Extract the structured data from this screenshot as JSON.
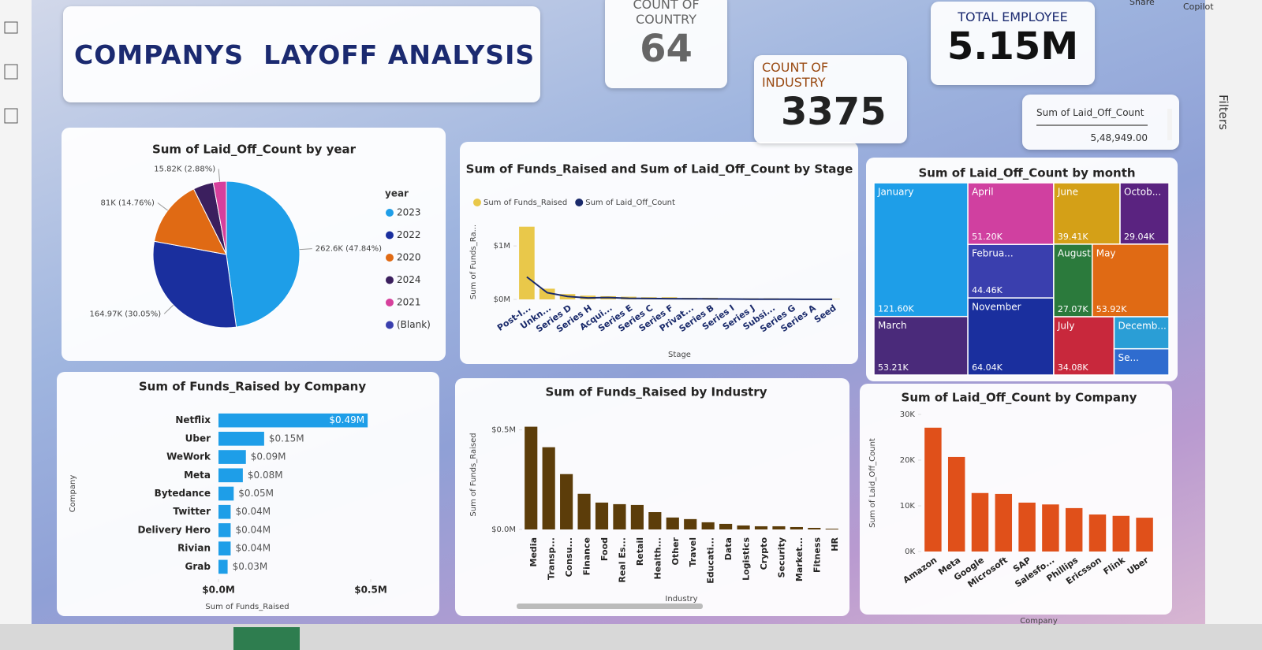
{
  "app": {
    "share": "Share",
    "copilot": "Copilot",
    "filters": "Filters"
  },
  "header": {
    "title": "COMPANYS  LAYOFF ANALYSIS"
  },
  "cards": [
    {
      "label": "COUNT OF COUNTRY",
      "value": 64
    },
    {
      "label": "COUNT OF INDUSTRY",
      "value": 3375
    },
    {
      "label": "TOTAL EMPLOYEE",
      "value": "5.15M"
    }
  ],
  "slicer": {
    "label": "Sum of Laid_Off_Count",
    "value": "5,48,949.00"
  },
  "chart_data": [
    {
      "type": "pie",
      "title": "Sum of Laid_Off_Count by year",
      "legend_title": "year",
      "categories": [
        "2023",
        "2022",
        "2020",
        "2024",
        "2021",
        "(Blank)"
      ],
      "values": [
        262600,
        164970,
        81000,
        24560,
        15820,
        0
      ],
      "value_labels": [
        "262.6K (47.84%)",
        "164.97K (30.05%)",
        "81K (14.76%)",
        null,
        "15.82K (2.88%)",
        null
      ],
      "colors": [
        "#1e9ee8",
        "#1a2f9e",
        "#e06a14",
        "#3b1f5e",
        "#d6409c",
        "#3a3fae"
      ]
    },
    {
      "type": "combo",
      "title": "Sum of Funds_Raised and Sum of Laid_Off_Count by Stage",
      "x_label": "Stage",
      "y_label": "Sum of Funds_Ra...",
      "categories": [
        "Post-I...",
        "Unkn...",
        "Series D",
        "Series H",
        "Acqui...",
        "Series E",
        "Series C",
        "Series F",
        "Privat...",
        "Series B",
        "Series I",
        "Series J",
        "Subsi...",
        "Series G",
        "Series A",
        "Seed"
      ],
      "series": [
        {
          "name": "Sum of Funds_Raised",
          "type": "bar",
          "color": "#e9c84a",
          "values": [
            1360000,
            200000,
            100000,
            70000,
            60000,
            50000,
            40000,
            40000,
            30000,
            30000,
            20000,
            20000,
            20000,
            10000,
            10000,
            5000
          ]
        },
        {
          "name": "Sum of Laid_Off_Count",
          "type": "line",
          "axis": "y2",
          "color": "#1a2a6b",
          "values": [
            300000,
            90000,
            40000,
            20000,
            25000,
            15000,
            12000,
            9000,
            8000,
            7000,
            5000,
            3000,
            3000,
            2000,
            1500,
            1000
          ]
        }
      ],
      "ylim": [
        0,
        1400000
      ],
      "yticks": [
        {
          "value": 0,
          "label": "$0M"
        },
        {
          "value": 1000000,
          "label": "$1M"
        }
      ],
      "y2lim": [
        0,
        1000000
      ]
    },
    {
      "type": "treemap",
      "title": "Sum of Laid_Off_Count by month",
      "categories": [
        "January",
        "March",
        "April",
        "Februa...",
        "November",
        "June",
        "Octob...",
        "August",
        "May",
        "July",
        "Decemb...",
        "Se..."
      ],
      "values": [
        121600,
        53210,
        51200,
        44460,
        64040,
        39410,
        29040,
        27070,
        53920,
        34080,
        17000,
        13920
      ],
      "value_labels": [
        "121.60K",
        "53.21K",
        "51.20K",
        "44.46K",
        "64.04K",
        "39.41K",
        "29.04K",
        "27.07K",
        "53.92K",
        "34.08K",
        null,
        null
      ],
      "colors": [
        "#1e9ee8",
        "#4a2a7a",
        "#d040a0",
        "#3a3fae",
        "#1a2f9e",
        "#d4a017",
        "#5a2380",
        "#2b7a3c",
        "#e06a14",
        "#c8283c",
        "#2a9ed6",
        "#2f6ccf"
      ]
    },
    {
      "type": "bar",
      "orientation": "horizontal",
      "title": "Sum of Funds_Raised by Company",
      "x_label": "Sum of Funds_Raised",
      "y_label": "Company",
      "categories": [
        "Netflix",
        "Uber",
        "WeWork",
        "Meta",
        "Bytedance",
        "Twitter",
        "Delivery Hero",
        "Rivian",
        "Grab"
      ],
      "values": [
        490000,
        150000,
        90000,
        80000,
        50000,
        40000,
        40000,
        40000,
        30000
      ],
      "value_labels": [
        "$0.49M",
        "$0.15M",
        "$0.09M",
        "$0.08M",
        "$0.05M",
        "$0.04M",
        "$0.04M",
        "$0.04M",
        "$0.03M"
      ],
      "color": "#1e9ee8",
      "xlim": [
        0,
        500000
      ],
      "xticks": [
        {
          "value": 0,
          "label": "$0.0M"
        },
        {
          "value": 500000,
          "label": "$0.5M"
        }
      ]
    },
    {
      "type": "bar",
      "orientation": "vertical",
      "title": "Sum of Funds_Raised by Industry",
      "x_label": "Industry",
      "y_label": "Sum of Funds_Raised",
      "categories": [
        "Media",
        "Transp...",
        "Consu...",
        "Finance",
        "Food",
        "Real Es...",
        "Retail",
        "Health...",
        "Other",
        "Travel",
        "Educati...",
        "Data",
        "Logistics",
        "Crypto",
        "Security",
        "Market...",
        "Fitness",
        "HR"
      ],
      "values": [
        516000,
        413000,
        278000,
        179000,
        135000,
        127000,
        123000,
        87000,
        60000,
        52000,
        36000,
        28000,
        20000,
        16000,
        16000,
        12000,
        8000,
        4000
      ],
      "color": "#5c3d0a",
      "ylim": [
        0,
        550000
      ],
      "yticks": [
        {
          "value": 0,
          "label": "$0.0M"
        },
        {
          "value": 500000,
          "label": "$0.5M"
        }
      ]
    },
    {
      "type": "bar",
      "orientation": "vertical",
      "title": "Sum of Laid_Off_Count by Company",
      "x_label": "Company",
      "y_label": "Sum of Laid_Off_Count",
      "categories": [
        "Amazon",
        "Meta",
        "Google",
        "Microsoft",
        "SAP",
        "Salesfo...",
        "Phillips",
        "Ericsson",
        "Flink",
        "Uber"
      ],
      "values": [
        27100,
        20700,
        12800,
        12600,
        10700,
        10300,
        9500,
        8100,
        7800,
        7400
      ],
      "color": "#e0501a",
      "ylim": [
        0,
        30000
      ],
      "yticks": [
        {
          "value": 0,
          "label": "0K"
        },
        {
          "value": 10000,
          "label": "10K"
        },
        {
          "value": 20000,
          "label": "20K"
        },
        {
          "value": 30000,
          "label": "30K"
        }
      ]
    }
  ]
}
